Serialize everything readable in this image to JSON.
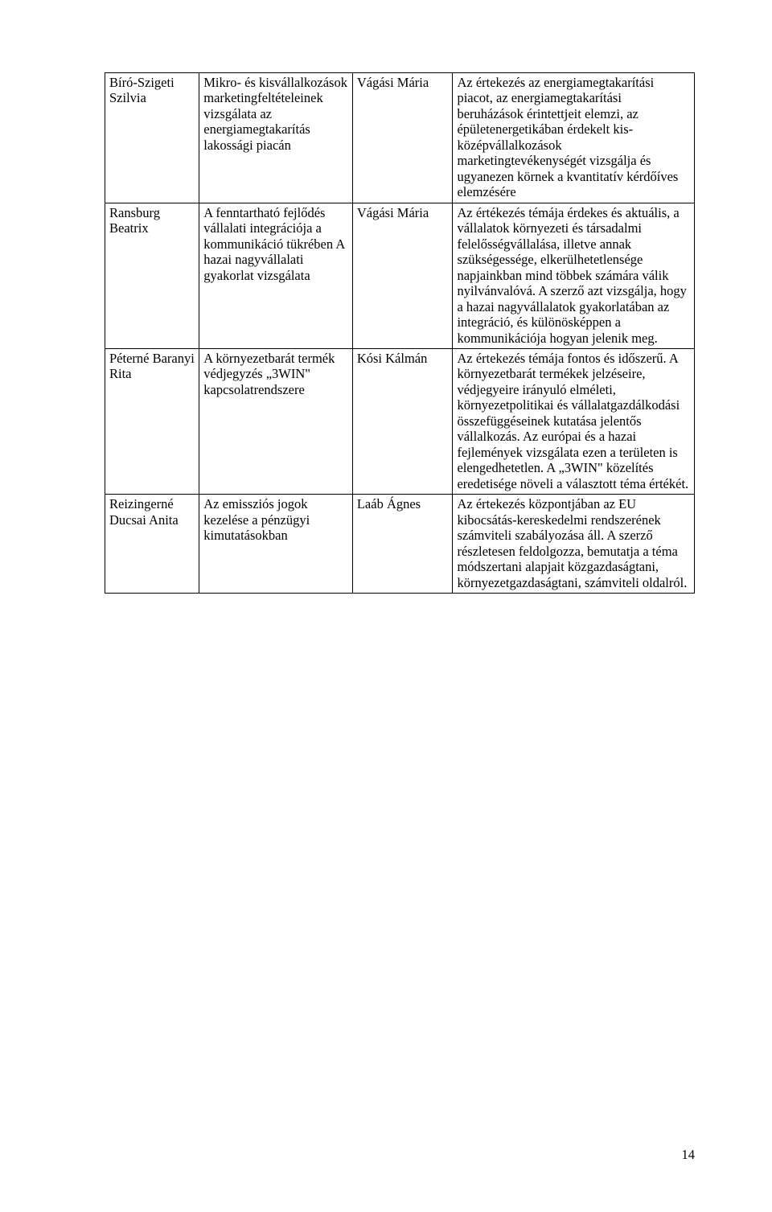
{
  "page_number": "14",
  "rows": [
    {
      "name": "Bíró-Szigeti Szilvia",
      "title": "Mikro- és kisvállalkozások marketingfeltételeinek vizsgálata az energiamegtakarítás lakossági piacán",
      "reviewer": "Vágási Mária",
      "summary": "Az értekezés az energiamegtakarítási piacot, az energiamegtakarítási beruházások érintettjeit elemzi, az épületenergetikában érdekelt kis-középvállalkozások marketingtevékenységét vizsgálja és ugyanezen körnek a kvantitatív kérdőíves elemzésére"
    },
    {
      "name": "Ransburg Beatrix",
      "title": "A fenntartható fejlődés vállalati integrációja a kommunikáció tükrében A hazai nagyvállalati gyakorlat vizsgálata",
      "reviewer": "Vágási Mária",
      "summary": "Az értékezés témája érdekes és aktuális, a vállalatok környezeti és társadalmi felelősségvállalása, illetve annak szükségessége, elkerülhetetlensége napjainkban mind többek számára válik nyilvánvalóvá. A szerző azt vizsgálja, hogy a hazai nagyvállalatok gyakorlatában az integráció, és különösképpen a kommunikációja hogyan jelenik meg."
    },
    {
      "name": "Péterné Baranyi Rita",
      "title": "A környezetbarát termék védjegyzés „3WIN\" kapcsolatrendszere",
      "reviewer": "Kósi Kálmán",
      "summary": "Az értekezés témája fontos és időszerű. A környezetbarát termékek jelzéseire, védjegyeire irányuló elméleti, környezetpolitikai és vállalatgazdálkodási összefüggéseinek kutatása jelentős vállalkozás. Az európai és a hazai fejlemények vizsgálata ezen a területen is elengedhetetlen. A „3WIN\" közelítés eredetisége növeli a választott téma értékét."
    },
    {
      "name": "Reizingerné Ducsai Anita",
      "title": "Az emissziós jogok kezelése a pénzügyi kimutatásokban",
      "reviewer": "Laáb Ágnes",
      "summary": "Az értekezés központjában az EU kibocsátás-kereskedelmi rendszerének számviteli szabályozása áll. A szerző részletesen feldolgozza, bemutatja a téma módszertani alapjait közgazdaságtani, környezetgazdaságtani, számviteli oldalról."
    }
  ]
}
